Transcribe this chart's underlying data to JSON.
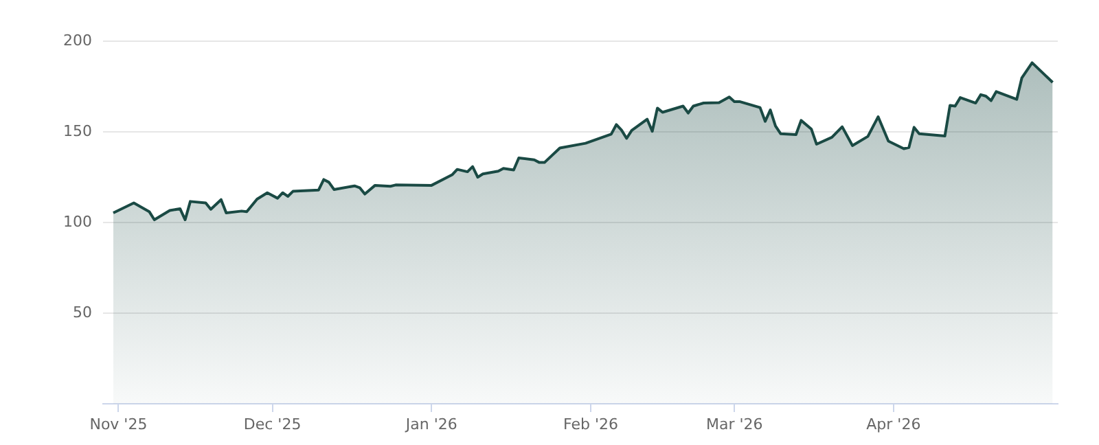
{
  "chart_data": {
    "type": "area",
    "x": [
      "2025-10-31",
      "2025-11-04",
      "2025-11-07",
      "2025-11-08",
      "2025-11-11",
      "2025-11-13",
      "2025-11-14",
      "2025-11-15",
      "2025-11-18",
      "2025-11-19",
      "2025-11-21",
      "2025-11-22",
      "2025-11-25",
      "2025-11-26",
      "2025-11-28",
      "2025-11-30",
      "2025-12-02",
      "2025-12-03",
      "2025-12-04",
      "2025-12-05",
      "2025-12-10",
      "2025-12-11",
      "2025-12-12",
      "2025-12-13",
      "2025-12-17",
      "2025-12-18",
      "2025-12-19",
      "2025-12-21",
      "2025-12-24",
      "2025-12-25",
      "2026-01-01",
      "2026-01-05",
      "2026-01-06",
      "2026-01-08",
      "2026-01-09",
      "2026-01-10",
      "2026-01-11",
      "2026-01-14",
      "2026-01-15",
      "2026-01-17",
      "2026-01-18",
      "2026-01-21",
      "2026-01-22",
      "2026-01-23",
      "2026-01-26",
      "2026-01-31",
      "2026-02-05",
      "2026-02-06",
      "2026-02-07",
      "2026-02-08",
      "2026-02-09",
      "2026-02-12",
      "2026-02-13",
      "2026-02-14",
      "2026-02-15",
      "2026-02-19",
      "2026-02-20",
      "2026-02-21",
      "2026-02-23",
      "2026-02-26",
      "2026-02-28",
      "2026-03-01",
      "2026-03-02",
      "2026-03-06",
      "2026-03-07",
      "2026-03-08",
      "2026-03-09",
      "2026-03-10",
      "2026-03-13",
      "2026-03-14",
      "2026-03-16",
      "2026-03-17",
      "2026-03-20",
      "2026-03-22",
      "2026-03-24",
      "2026-03-27",
      "2026-03-29",
      "2026-03-31",
      "2026-04-03",
      "2026-04-04",
      "2026-04-05",
      "2026-04-06",
      "2026-04-11",
      "2026-04-12",
      "2026-04-13",
      "2026-04-14",
      "2026-04-17",
      "2026-04-18",
      "2026-04-19",
      "2026-04-20",
      "2026-04-21",
      "2026-04-25",
      "2026-04-26",
      "2026-04-28",
      "2026-05-02"
    ],
    "series": [
      {
        "color": "#1a4a44",
        "values": [
          105.3,
          110.8,
          106,
          101.5,
          106.6,
          107.6,
          101.5,
          111.6,
          110.8,
          107.3,
          112.6,
          105.3,
          106.3,
          106,
          112.9,
          116.4,
          113.4,
          116.4,
          114.4,
          117.2,
          117.9,
          123.7,
          122.2,
          118.2,
          120.2,
          119.2,
          115.7,
          120.5,
          120,
          120.7,
          120.5,
          126.3,
          129.3,
          128,
          130.8,
          125,
          126.8,
          128.3,
          129.8,
          129,
          135.6,
          134.6,
          133.1,
          133.1,
          141.1,
          143.7,
          148.7,
          154,
          151,
          146.4,
          150.8,
          157,
          150.3,
          163.1,
          160.8,
          164.2,
          160.4,
          164.2,
          165.9,
          166.1,
          169.2,
          166.7,
          166.7,
          163.4,
          155.8,
          162.1,
          153.3,
          149,
          148.5,
          156.3,
          151.5,
          143.2,
          147,
          152.8,
          142.4,
          147.5,
          158.3,
          144.9,
          140.7,
          141.4,
          152.5,
          149,
          147.7,
          164.6,
          164.2,
          168.9,
          165.9,
          170.5,
          169.7,
          167.2,
          172.2,
          167.9,
          179.8,
          188.1,
          177.3
        ]
      }
    ],
    "xlim": [
      "2025-10-29",
      "2026-05-03"
    ],
    "xticks": [
      {
        "value": "2025-11-01",
        "label": "Nov '25"
      },
      {
        "value": "2025-12-01",
        "label": "Dec '25"
      },
      {
        "value": "2026-01-01",
        "label": "Jan '26"
      },
      {
        "value": "2026-02-01",
        "label": "Feb '26"
      },
      {
        "value": "2026-03-01",
        "label": "Mar '26"
      },
      {
        "value": "2026-04-01",
        "label": "Apr '26"
      }
    ],
    "ylim": [
      0,
      200
    ],
    "yticks": [
      50,
      100,
      150,
      200
    ],
    "grid": "y",
    "legend": false,
    "marker": "none",
    "line_style": "solid"
  }
}
